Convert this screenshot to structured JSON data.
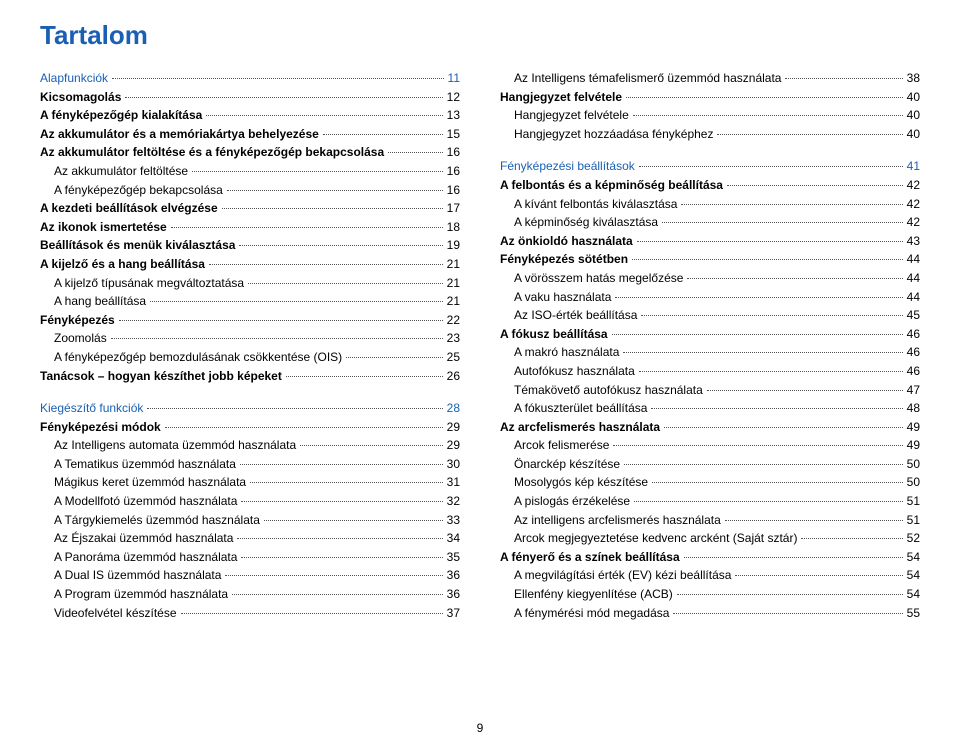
{
  "title": "Tartalom",
  "page_number": "9",
  "colors": {
    "accent": "#1a5fb4",
    "text": "#000000",
    "dots": "#555555",
    "background": "#ffffff"
  },
  "typography": {
    "title_fontsize": 26,
    "body_fontsize": 12,
    "font_family": "Arial"
  },
  "left": [
    {
      "label": "Alapfunkciók",
      "page": "11",
      "cls": "sec"
    },
    {
      "label": "Kicsomagolás",
      "page": "12",
      "cls": "bold"
    },
    {
      "label": "A fényképezőgép kialakítása",
      "page": "13",
      "cls": "bold"
    },
    {
      "label": "Az akkumulátor és a memóriakártya behelyezése",
      "page": "15",
      "cls": "bold"
    },
    {
      "label": "Az akkumulátor feltöltése és a fényképezőgép bekapcsolása",
      "page": "16",
      "cls": "bold",
      "tight": true
    },
    {
      "label": "Az akkumulátor feltöltése",
      "page": "16",
      "cls": "l1"
    },
    {
      "label": "A fényképezőgép bekapcsolása",
      "page": "16",
      "cls": "l1"
    },
    {
      "label": "A kezdeti beállítások elvégzése",
      "page": "17",
      "cls": "bold"
    },
    {
      "label": "Az ikonok ismertetése",
      "page": "18",
      "cls": "bold"
    },
    {
      "label": "Beállítások és menük kiválasztása",
      "page": "19",
      "cls": "bold"
    },
    {
      "label": "A kijelző és a hang beállítása",
      "page": "21",
      "cls": "bold"
    },
    {
      "label": "A kijelző típusának megváltoztatása",
      "page": "21",
      "cls": "l1"
    },
    {
      "label": "A hang beállítása",
      "page": "21",
      "cls": "l1"
    },
    {
      "label": "Fényképezés",
      "page": "22",
      "cls": "bold"
    },
    {
      "label": "Zoomolás",
      "page": "23",
      "cls": "l1"
    },
    {
      "label": "A fényképezőgép bemozdulásának csökkentése (OIS)",
      "page": "25",
      "cls": "l1",
      "tight": true
    },
    {
      "label": "Tanácsok – hogyan készíthet jobb képeket",
      "page": "26",
      "cls": "bold"
    },
    {
      "label": "",
      "page": "",
      "cls": "gap"
    },
    {
      "label": "Kiegészítő funkciók",
      "page": "28",
      "cls": "sec"
    },
    {
      "label": "Fényképezési módok",
      "page": "29",
      "cls": "bold"
    },
    {
      "label": "Az Intelligens automata üzemmód használata",
      "page": "29",
      "cls": "l1"
    },
    {
      "label": "A Tematikus üzemmód használata",
      "page": "30",
      "cls": "l1"
    },
    {
      "label": "Mágikus keret üzemmód használata",
      "page": "31",
      "cls": "l1"
    },
    {
      "label": "A Modellfotó üzemmód használata",
      "page": "32",
      "cls": "l1"
    },
    {
      "label": "A Tárgykiemelés üzemmód használata",
      "page": "33",
      "cls": "l1"
    },
    {
      "label": "Az Éjszakai üzemmód használata",
      "page": "34",
      "cls": "l1"
    },
    {
      "label": "A Panoráma üzemmód használata",
      "page": "35",
      "cls": "l1"
    },
    {
      "label": "A Dual IS üzemmód használata",
      "page": "36",
      "cls": "l1"
    },
    {
      "label": "A Program üzemmód használata",
      "page": "36",
      "cls": "l1"
    },
    {
      "label": "Videofelvétel készítése",
      "page": "37",
      "cls": "l1"
    }
  ],
  "right": [
    {
      "label": "Az Intelligens témafelismerő üzemmód használata",
      "page": "38",
      "cls": "l1"
    },
    {
      "label": "Hangjegyzet felvétele",
      "page": "40",
      "cls": "bold"
    },
    {
      "label": "Hangjegyzet felvétele",
      "page": "40",
      "cls": "l1"
    },
    {
      "label": "Hangjegyzet hozzáadása fényképhez",
      "page": "40",
      "cls": "l1"
    },
    {
      "label": "",
      "page": "",
      "cls": "gap"
    },
    {
      "label": "Fényképezési beállítások",
      "page": "41",
      "cls": "sec"
    },
    {
      "label": "A felbontás és a képminőség beállítása",
      "page": "42",
      "cls": "bold"
    },
    {
      "label": "A kívánt felbontás kiválasztása",
      "page": "42",
      "cls": "l1"
    },
    {
      "label": "A képminőség kiválasztása",
      "page": "42",
      "cls": "l1"
    },
    {
      "label": "Az önkioldó használata",
      "page": "43",
      "cls": "bold"
    },
    {
      "label": "Fényképezés sötétben",
      "page": "44",
      "cls": "bold"
    },
    {
      "label": "A vörösszem hatás megelőzése",
      "page": "44",
      "cls": "l1"
    },
    {
      "label": "A vaku használata",
      "page": "44",
      "cls": "l1"
    },
    {
      "label": "Az ISO-érték beállítása",
      "page": "45",
      "cls": "l1"
    },
    {
      "label": "A fókusz beállítása",
      "page": "46",
      "cls": "bold"
    },
    {
      "label": "A makró használata",
      "page": "46",
      "cls": "l1"
    },
    {
      "label": "Autofókusz használata",
      "page": "46",
      "cls": "l1"
    },
    {
      "label": "Témakövető autofókusz használata",
      "page": "47",
      "cls": "l1"
    },
    {
      "label": "A fókuszterület beállítása",
      "page": "48",
      "cls": "l1"
    },
    {
      "label": "Az arcfelismerés használata",
      "page": "49",
      "cls": "bold"
    },
    {
      "label": "Arcok felismerése",
      "page": "49",
      "cls": "l1"
    },
    {
      "label": "Önarckép készítése",
      "page": "50",
      "cls": "l1"
    },
    {
      "label": "Mosolygós kép készítése",
      "page": "50",
      "cls": "l1"
    },
    {
      "label": "A pislogás érzékelése",
      "page": "51",
      "cls": "l1"
    },
    {
      "label": "Az intelligens arcfelismerés használata",
      "page": "51",
      "cls": "l1"
    },
    {
      "label": "Arcok megjegyeztetése kedvenc arcként (Saját sztár)",
      "page": "52",
      "cls": "l1"
    },
    {
      "label": "A fényerő és a színek beállítása",
      "page": "54",
      "cls": "bold"
    },
    {
      "label": "A megvilágítási érték (EV) kézi beállítása",
      "page": "54",
      "cls": "l1"
    },
    {
      "label": "Ellenfény kiegyenlítése (ACB)",
      "page": "54",
      "cls": "l1"
    },
    {
      "label": "A fénymérési mód megadása",
      "page": "55",
      "cls": "l1"
    }
  ]
}
